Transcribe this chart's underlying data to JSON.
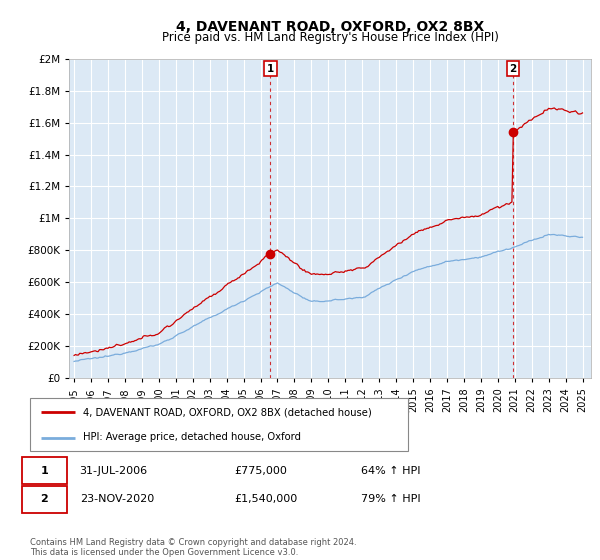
{
  "title": "4, DAVENANT ROAD, OXFORD, OX2 8BX",
  "subtitle": "Price paid vs. HM Land Registry's House Price Index (HPI)",
  "legend_line1": "4, DAVENANT ROAD, OXFORD, OX2 8BX (detached house)",
  "legend_line2": "HPI: Average price, detached house, Oxford",
  "footnote": "Contains HM Land Registry data © Crown copyright and database right 2024.\nThis data is licensed under the Open Government Licence v3.0.",
  "sale1_date": "31-JUL-2006",
  "sale1_price": "£775,000",
  "sale1_hpi": "64% ↑ HPI",
  "sale2_date": "23-NOV-2020",
  "sale2_price": "£1,540,000",
  "sale2_hpi": "79% ↑ HPI",
  "red_color": "#cc0000",
  "blue_color": "#7aacdc",
  "chart_bg": "#dce9f5",
  "grid_color": "#ffffff",
  "background_color": "#ffffff",
  "ylim": [
    0,
    2000000
  ],
  "yticks": [
    0,
    200000,
    400000,
    600000,
    800000,
    1000000,
    1200000,
    1400000,
    1600000,
    1800000,
    2000000
  ],
  "ytick_labels": [
    "£0",
    "£200K",
    "£400K",
    "£600K",
    "£800K",
    "£1M",
    "£1.2M",
    "£1.4M",
    "£1.6M",
    "£1.8M",
    "£2M"
  ],
  "sale1_year": 2006.58,
  "sale1_value": 775000,
  "sale2_year": 2020.9,
  "sale2_value": 1540000,
  "xlim_left": 1994.7,
  "xlim_right": 2025.5
}
